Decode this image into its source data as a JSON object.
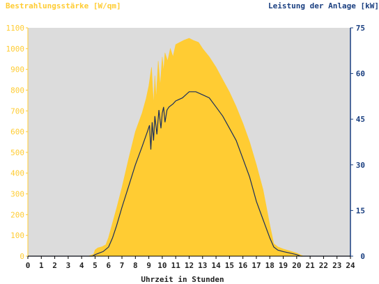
{
  "chart_data": {
    "type": "area",
    "title_left": "Bestrahlungsstärke [W/qm]",
    "title_right": "Leistung der Anlage [kW]",
    "xlabel": "Uhrzeit in Stunden",
    "x_ticks": [
      "0",
      "1",
      "2",
      "3",
      "4",
      "5",
      "6",
      "7",
      "8",
      "9",
      "10",
      "11",
      "12",
      "13",
      "14",
      "15",
      "16",
      "17",
      "18",
      "19",
      "20",
      "21",
      "22",
      "23",
      "24"
    ],
    "xlim": [
      0,
      24
    ],
    "y_left_ticks": [
      "0",
      "100",
      "200",
      "300",
      "400",
      "500",
      "600",
      "700",
      "800",
      "900",
      "1000",
      "1100"
    ],
    "y_left_lim": [
      0,
      1100
    ],
    "y_right_ticks": [
      "0",
      "15",
      "30",
      "45",
      "60",
      "75"
    ],
    "y_right_lim": [
      0,
      75
    ],
    "colors": {
      "background": "#dcdcdc",
      "irradiance": "#ffcc33",
      "left_axis": "#ffcc33",
      "right_axis": "#1a3f80",
      "power_line": "#1a2e5c"
    },
    "series": [
      {
        "name": "Bestrahlungsstärke [W/qm]",
        "axis": "left",
        "style": "area",
        "x": [
          0,
          4.5,
          4.9,
          5.0,
          5.2,
          5.5,
          5.8,
          6.0,
          6.3,
          6.6,
          7.0,
          7.5,
          8.0,
          8.5,
          8.8,
          9.0,
          9.2,
          9.35,
          9.45,
          9.55,
          9.7,
          9.85,
          10.0,
          10.1,
          10.2,
          10.4,
          10.6,
          10.8,
          11.0,
          11.3,
          11.6,
          12.0,
          12.3,
          12.7,
          13.0,
          13.5,
          14.0,
          14.5,
          15.0,
          15.5,
          16.0,
          16.5,
          17.0,
          17.5,
          18.0,
          18.3,
          18.6,
          19.0,
          19.5,
          20.0,
          20.5,
          21.0,
          24
        ],
        "values": [
          0,
          0,
          10,
          30,
          40,
          45,
          55,
          90,
          160,
          230,
          330,
          470,
          600,
          690,
          760,
          820,
          910,
          730,
          870,
          760,
          940,
          820,
          960,
          890,
          980,
          940,
          1000,
          960,
          1020,
          1030,
          1040,
          1050,
          1040,
          1030,
          1000,
          960,
          910,
          850,
          790,
          720,
          640,
          550,
          440,
          320,
          150,
          60,
          45,
          35,
          25,
          15,
          0,
          0,
          0
        ]
      },
      {
        "name": "Leistung der Anlage [kW]",
        "axis": "right",
        "style": "line",
        "x": [
          0,
          4.8,
          5.0,
          5.3,
          5.6,
          6.0,
          6.3,
          6.6,
          7.0,
          7.5,
          8.0,
          8.5,
          8.9,
          9.05,
          9.15,
          9.25,
          9.35,
          9.45,
          9.6,
          9.75,
          9.9,
          10.0,
          10.1,
          10.2,
          10.35,
          10.5,
          10.8,
          11.0,
          11.5,
          12.0,
          12.5,
          13.0,
          13.5,
          14.0,
          14.5,
          15.0,
          15.5,
          16.0,
          16.5,
          17.0,
          17.5,
          18.0,
          18.3,
          18.6,
          19.0,
          19.5,
          20.0,
          20.3,
          21,
          24
        ],
        "values": [
          0,
          0,
          0.5,
          1,
          1.5,
          3,
          6,
          10,
          16,
          23,
          30,
          36,
          41,
          43,
          35,
          44,
          38,
          46,
          40,
          48,
          42,
          47,
          49,
          44,
          48,
          49,
          50,
          51,
          52,
          54,
          54,
          53,
          52,
          49,
          46,
          42,
          38,
          32,
          26,
          18,
          12,
          6,
          3,
          2,
          1.5,
          1,
          0.5,
          0,
          0,
          0
        ]
      }
    ]
  }
}
